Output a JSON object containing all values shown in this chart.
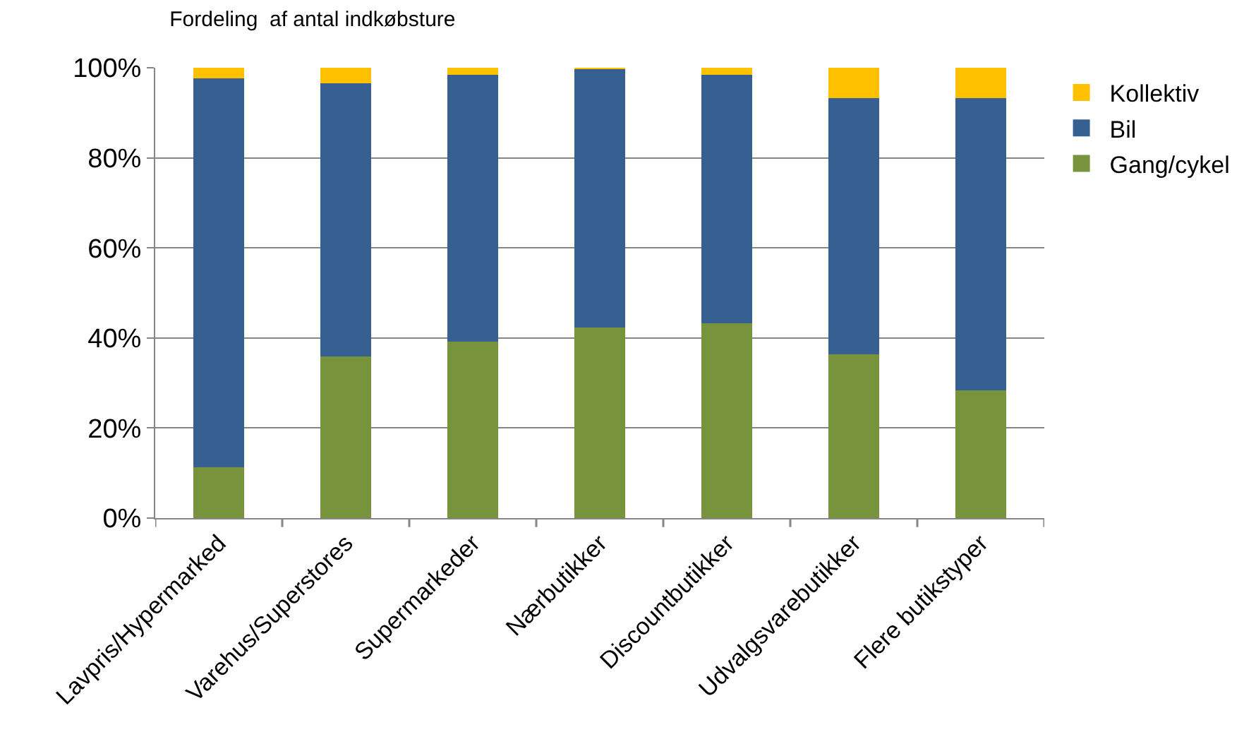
{
  "chart_data": {
    "type": "bar",
    "stacked": true,
    "title": "Fordeling  af antal indkøbsture",
    "categories": [
      "Lavpris/Hypermarked",
      "Varehus/Superstores",
      "Supermarkeder",
      "Nærbutikker",
      "Discountbutikker",
      "Udvalgsvarebutikker",
      "Flere butikstyper"
    ],
    "series": [
      {
        "name": "Gang/cykel",
        "color": "#77933c",
        "values": [
          11.3,
          35.9,
          39.2,
          42.3,
          43.2,
          36.3,
          28.4
        ]
      },
      {
        "name": "Bil",
        "color": "#366092",
        "values": [
          86.4,
          60.7,
          59.2,
          57.5,
          55.3,
          57.0,
          64.9
        ]
      },
      {
        "name": "Kollektiv",
        "color": "#ffc000",
        "values": [
          2.3,
          3.4,
          1.6,
          0.2,
          1.5,
          6.7,
          6.7
        ]
      }
    ],
    "ylim": [
      0,
      100
    ],
    "yticks": [
      {
        "value": 0,
        "label": "0%"
      },
      {
        "value": 20,
        "label": "20%"
      },
      {
        "value": 40,
        "label": "40%"
      },
      {
        "value": 60,
        "label": "60%"
      },
      {
        "value": 80,
        "label": "80%"
      },
      {
        "value": 100,
        "label": "100%"
      }
    ],
    "grid": "y",
    "legend": "right"
  }
}
